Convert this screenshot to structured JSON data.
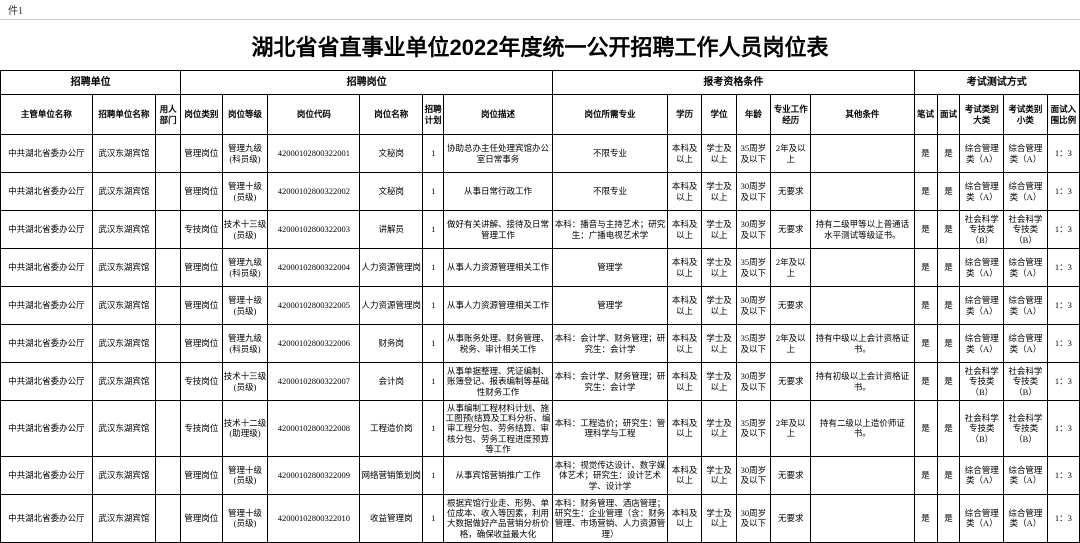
{
  "sheet_tab": "件1",
  "title": "湖北省省直事业单位2022年度统一公开招聘工作人员岗位表",
  "group_headers": {
    "g1": "招聘单位",
    "g2": "招聘岗位",
    "g3": "报考资格条件",
    "g4": "考试测试方式"
  },
  "col_headers": {
    "dept": "主管单位名称",
    "unit": "招聘单位名称",
    "usedept": "用人部门",
    "cat": "岗位类别",
    "grade": "岗位等级",
    "code": "岗位代码",
    "pname": "岗位名称",
    "plan": "招聘计划",
    "desc": "岗位描述",
    "major": "岗位所需专业",
    "edu": "学历",
    "deg": "学位",
    "age": "年龄",
    "exp": "专业工作经历",
    "other": "其他条件",
    "wt": "笔试",
    "iv": "面试",
    "tmaj": "考试类别大类",
    "tmin": "考试类别小类",
    "ratio": "面试入围比例"
  },
  "rows": [
    {
      "dept": "中共湖北省委办公厅",
      "unit": "武汉东湖宾馆",
      "usedept": "",
      "cat": "管理岗位",
      "grade": "管理九级(科员级)",
      "code": "42000102800322001",
      "pname": "文秘岗",
      "plan": "1",
      "desc": "协助总办主任处理宾馆办公室日常事务",
      "major": "不限专业",
      "edu": "本科及以上",
      "deg": "学士及以上",
      "age": "35周岁及以下",
      "exp": "2年及以上",
      "other": "",
      "wt": "是",
      "iv": "是",
      "tmaj": "综合管理类（A）",
      "tmin": "综合管理类（A）",
      "ratio": "1：3"
    },
    {
      "dept": "中共湖北省委办公厅",
      "unit": "武汉东湖宾馆",
      "usedept": "",
      "cat": "管理岗位",
      "grade": "管理十级(员级)",
      "code": "42000102800322002",
      "pname": "文秘岗",
      "plan": "1",
      "desc": "从事日常行政工作",
      "major": "不限专业",
      "edu": "本科及以上",
      "deg": "学士及以上",
      "age": "30周岁及以下",
      "exp": "无要求",
      "other": "",
      "wt": "是",
      "iv": "是",
      "tmaj": "综合管理类（A）",
      "tmin": "综合管理类（A）",
      "ratio": "1：3"
    },
    {
      "dept": "中共湖北省委办公厅",
      "unit": "武汉东湖宾馆",
      "usedept": "",
      "cat": "专技岗位",
      "grade": "技术十三级(员级)",
      "code": "42000102800322003",
      "pname": "讲解员",
      "plan": "1",
      "desc": "做好有关讲解、接待及日常管理工作",
      "major": "本科：播音与主持艺术；研究生：广播电视艺术学",
      "edu": "本科及以上",
      "deg": "学士及以上",
      "age": "30周岁及以下",
      "exp": "无要求",
      "other": "持有二级甲等以上普通话水平测试等级证书。",
      "wt": "是",
      "iv": "是",
      "tmaj": "社会科学专技类（B）",
      "tmin": "社会科学专技类（B）",
      "ratio": "1：3"
    },
    {
      "dept": "中共湖北省委办公厅",
      "unit": "武汉东湖宾馆",
      "usedept": "",
      "cat": "管理岗位",
      "grade": "管理九级(科员级)",
      "code": "42000102800322004",
      "pname": "人力资源管理岗",
      "plan": "1",
      "desc": "从事人力资源管理相关工作",
      "major": "管理学",
      "edu": "本科及以上",
      "deg": "学士及以上",
      "age": "35周岁及以下",
      "exp": "2年及以上",
      "other": "",
      "wt": "是",
      "iv": "是",
      "tmaj": "综合管理类（A）",
      "tmin": "综合管理类（A）",
      "ratio": "1：3"
    },
    {
      "dept": "中共湖北省委办公厅",
      "unit": "武汉东湖宾馆",
      "usedept": "",
      "cat": "管理岗位",
      "grade": "管理十级(员级)",
      "code": "42000102800322005",
      "pname": "人力资源管理岗",
      "plan": "1",
      "desc": "从事人力资源管理相关工作",
      "major": "管理学",
      "edu": "本科及以上",
      "deg": "学士及以上",
      "age": "30周岁及以下",
      "exp": "无要求",
      "other": "",
      "wt": "是",
      "iv": "是",
      "tmaj": "综合管理类（A）",
      "tmin": "综合管理类（A）",
      "ratio": "1：3"
    },
    {
      "dept": "中共湖北省委办公厅",
      "unit": "武汉东湖宾馆",
      "usedept": "",
      "cat": "管理岗位",
      "grade": "管理九级(科员级)",
      "code": "42000102800322006",
      "pname": "财务岗",
      "plan": "1",
      "desc": "从事账务处理、财务管理、税务、审计相关工作",
      "major": "本科：会计学、财务管理；研究生：会计学",
      "edu": "本科及以上",
      "deg": "学士及以上",
      "age": "35周岁及以下",
      "exp": "2年及以上",
      "other": "持有中级以上会计资格证书。",
      "wt": "是",
      "iv": "是",
      "tmaj": "综合管理类（A）",
      "tmin": "综合管理类（A）",
      "ratio": "1：3"
    },
    {
      "dept": "中共湖北省委办公厅",
      "unit": "武汉东湖宾馆",
      "usedept": "",
      "cat": "专技岗位",
      "grade": "技术十三级(员级)",
      "code": "42000102800322007",
      "pname": "会计岗",
      "plan": "1",
      "desc": "从事单据整理、凭证编制、账簿登记、报表编制等基础性财务工作",
      "major": "本科：会计学、财务管理；研究生：会计学",
      "edu": "本科及以上",
      "deg": "学士及以上",
      "age": "30周岁及以下",
      "exp": "无要求",
      "other": "持有初级以上会计资格证书。",
      "wt": "是",
      "iv": "是",
      "tmaj": "社会科学专技类（B）",
      "tmin": "社会科学专技类（B）",
      "ratio": "1：3"
    },
    {
      "dept": "中共湖北省委办公厅",
      "unit": "武汉东湖宾馆",
      "usedept": "",
      "cat": "专技岗位",
      "grade": "技术十二级(助理级)",
      "code": "42000102800322008",
      "pname": "工程造价岗",
      "plan": "1",
      "desc": "从事编制工程材料计划、施工图预(结算及工料分析、编审工程分包、劳务结算、审核分包、劳务工程进度预算等工作",
      "major": "本科：工程造价；研究生：管理科学与工程",
      "edu": "本科及以上",
      "deg": "学士及以上",
      "age": "35周岁及以下",
      "exp": "2年及以上",
      "other": "持有二级以上造价师证书。",
      "wt": "是",
      "iv": "是",
      "tmaj": "社会科学专技类（B）",
      "tmin": "社会科学专技类（B）",
      "ratio": "1：3"
    },
    {
      "dept": "中共湖北省委办公厅",
      "unit": "武汉东湖宾馆",
      "usedept": "",
      "cat": "管理岗位",
      "grade": "管理十级(员级)",
      "code": "42000102800322009",
      "pname": "网络营销策划岗",
      "plan": "1",
      "desc": "从事宾馆营销推广工作",
      "major": "本科：视觉传达设计、数字媒体艺术；研究生：设计艺术学、设计学",
      "edu": "本科及以上",
      "deg": "学士及以上",
      "age": "30周岁及以下",
      "exp": "无要求",
      "other": "",
      "wt": "是",
      "iv": "是",
      "tmaj": "综合管理类（A）",
      "tmin": "综合管理类（A）",
      "ratio": "1：3"
    },
    {
      "dept": "中共湖北省委办公厅",
      "unit": "武汉东湖宾馆",
      "usedept": "",
      "cat": "管理岗位",
      "grade": "管理十级(员级)",
      "code": "42000102800322010",
      "pname": "收益管理岗",
      "plan": "1",
      "desc": "根据宾馆行业走、形势、单位成本、收入等因素，利用大数据做好产品营销分析价格，确保收益最大化",
      "major": "本科：财务管理、酒店管理；研究生：企业管理（含：财务管理、市场营销、人力资源管理）",
      "edu": "本科及以上",
      "deg": "学士及以上",
      "age": "30周岁及以下",
      "exp": "无要求",
      "other": "",
      "wt": "是",
      "iv": "是",
      "tmaj": "综合管理类（A）",
      "tmin": "综合管理类（A）",
      "ratio": "1：3"
    }
  ]
}
